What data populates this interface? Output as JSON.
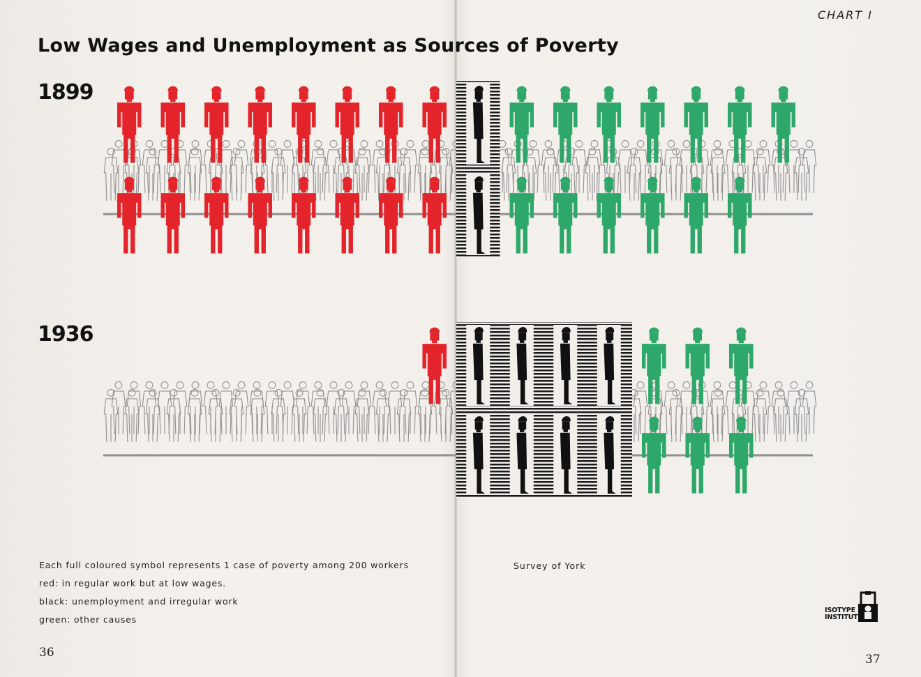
{
  "page": {
    "chart_label": "CHART I",
    "title": "Low Wages and Unemployment as Sources of Poverty",
    "source": "Survey of York",
    "logo_text": "ISOTYPE\nINSTITUTE",
    "page_left": "36",
    "page_right": "37"
  },
  "legend": {
    "scale": "Each full coloured symbol represents 1 case of poverty among 200 workers",
    "red": "red:  in regular work but at low wages.",
    "black": "black:  unemployment and irregular work",
    "green": "green:  other causes"
  },
  "colors": {
    "red": "#e3252b",
    "black": "#111111",
    "green": "#2ea86a",
    "outline": "#8f8f8f"
  },
  "chart_data": {
    "type": "pictogram",
    "title": "Low Wages and Unemployment as Sources of Poverty",
    "unit": "1 case of poverty among 200 workers",
    "categories": [
      "1899",
      "1936"
    ],
    "series": [
      {
        "name": "red",
        "color": "red",
        "values": [
          16,
          1
        ]
      },
      {
        "name": "black",
        "color": "black",
        "values": [
          2,
          8
        ]
      },
      {
        "name": "green",
        "color": "green",
        "values": [
          13,
          6
        ]
      }
    ]
  }
}
